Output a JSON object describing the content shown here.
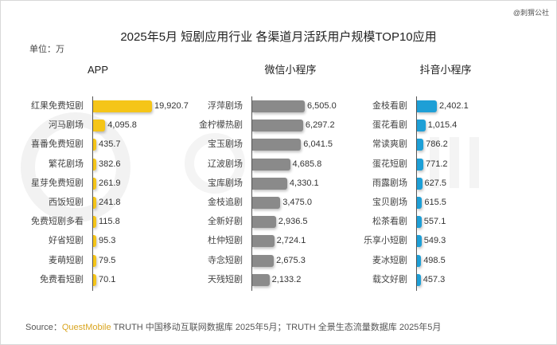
{
  "watermark": "@刺猬公社",
  "bg_logo": "QUEST MOBILE",
  "chart_data": {
    "type": "bar",
    "orientation": "horizontal",
    "title": "2025年5月 短剧应用行业 各渠道月活跃用户规模TOP10应用",
    "unit": "单位：万",
    "panels": [
      {
        "title": "APP",
        "color": "#f5c518",
        "categories": [
          "红果免费短剧",
          "河马剧场",
          "喜番免费短剧",
          "繁花剧场",
          "星芽免费短剧",
          "西饭短剧",
          "免费短剧多看",
          "好省短剧",
          "麦萌短剧",
          "免费看短剧"
        ],
        "values": [
          19920.7,
          4095.8,
          435.7,
          382.6,
          261.9,
          241.8,
          115.8,
          95.3,
          79.5,
          70.1
        ],
        "labels": [
          "19,920.7",
          "4,095.8",
          "435.7",
          "382.6",
          "261.9",
          "241.8",
          "115.8",
          "95.3",
          "79.5",
          "70.1"
        ]
      },
      {
        "title": "微信小程序",
        "color": "#8a8a8a",
        "categories": [
          "浮萍剧场",
          "金柠檬热剧",
          "宝玉剧场",
          "辽波剧场",
          "宝库剧场",
          "金枝追剧",
          "全新好剧",
          "杜仲短剧",
          "寺念短剧",
          "天残短剧"
        ],
        "values": [
          6505.0,
          6297.2,
          6041.5,
          4685.8,
          4330.1,
          3475.0,
          2936.5,
          2724.1,
          2675.3,
          2133.2
        ],
        "labels": [
          "6,505.0",
          "6,297.2",
          "6,041.5",
          "4,685.8",
          "4,330.1",
          "3,475.0",
          "2,936.5",
          "2,724.1",
          "2,675.3",
          "2,133.2"
        ]
      },
      {
        "title": "抖音小程序",
        "color": "#1e9fd6",
        "categories": [
          "金枝看剧",
          "蛋花看剧",
          "常读爽剧",
          "蛋花短剧",
          "雨露剧场",
          "宝贝剧场",
          "松茶看剧",
          "乐享小短剧",
          "麦冰短剧",
          "载文好剧"
        ],
        "values": [
          2402.1,
          1015.4,
          786.2,
          771.2,
          627.5,
          615.5,
          557.1,
          549.3,
          498.5,
          457.3
        ],
        "labels": [
          "2,402.1",
          "1,015.4",
          "786.2",
          "771.2",
          "627.5",
          "615.5",
          "557.1",
          "549.3",
          "498.5",
          "457.3"
        ]
      }
    ]
  },
  "source": {
    "prefix": "Source：",
    "brand": "QuestMobile",
    "text": " TRUTH 中国移动互联网数据库 2025年5月；TRUTH 全景生态流量数据库 2025年5月"
  }
}
